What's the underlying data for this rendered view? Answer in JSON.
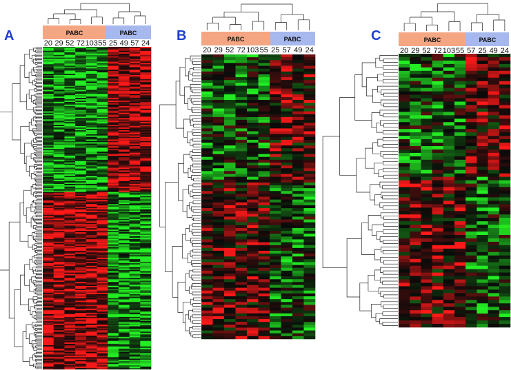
{
  "figure": {
    "colors": {
      "group1": "#f4a582",
      "group2": "#a6b8ee",
      "panel_label": "#1f3fd0",
      "heat_red": "#ff1a1a",
      "heat_green": "#22ee22",
      "heat_black": "#0a0a0a"
    },
    "panels": [
      {
        "label": "A",
        "groups": [
          {
            "label": "PABC"
          },
          {
            "label": "PABC"
          }
        ],
        "samples": [
          "20",
          "29",
          "52",
          "72",
          "103",
          "55",
          "25",
          "49",
          "57",
          "24"
        ],
        "group1_count": 6,
        "row_count": 240
      },
      {
        "label": "B",
        "groups": [
          {
            "label": "PABC"
          },
          {
            "label": "PABC"
          }
        ],
        "samples": [
          "20",
          "29",
          "52",
          "72",
          "103",
          "55",
          "25",
          "57",
          "49",
          "24"
        ],
        "group1_count": 6,
        "row_count": 100
      },
      {
        "label": "C",
        "groups": [
          {
            "label": "PABC"
          },
          {
            "label": "PABC"
          }
        ],
        "samples": [
          "20",
          "29",
          "52",
          "72",
          "103",
          "55",
          "57",
          "25",
          "49",
          "24"
        ],
        "group1_count": 6,
        "row_count": 80
      }
    ]
  }
}
